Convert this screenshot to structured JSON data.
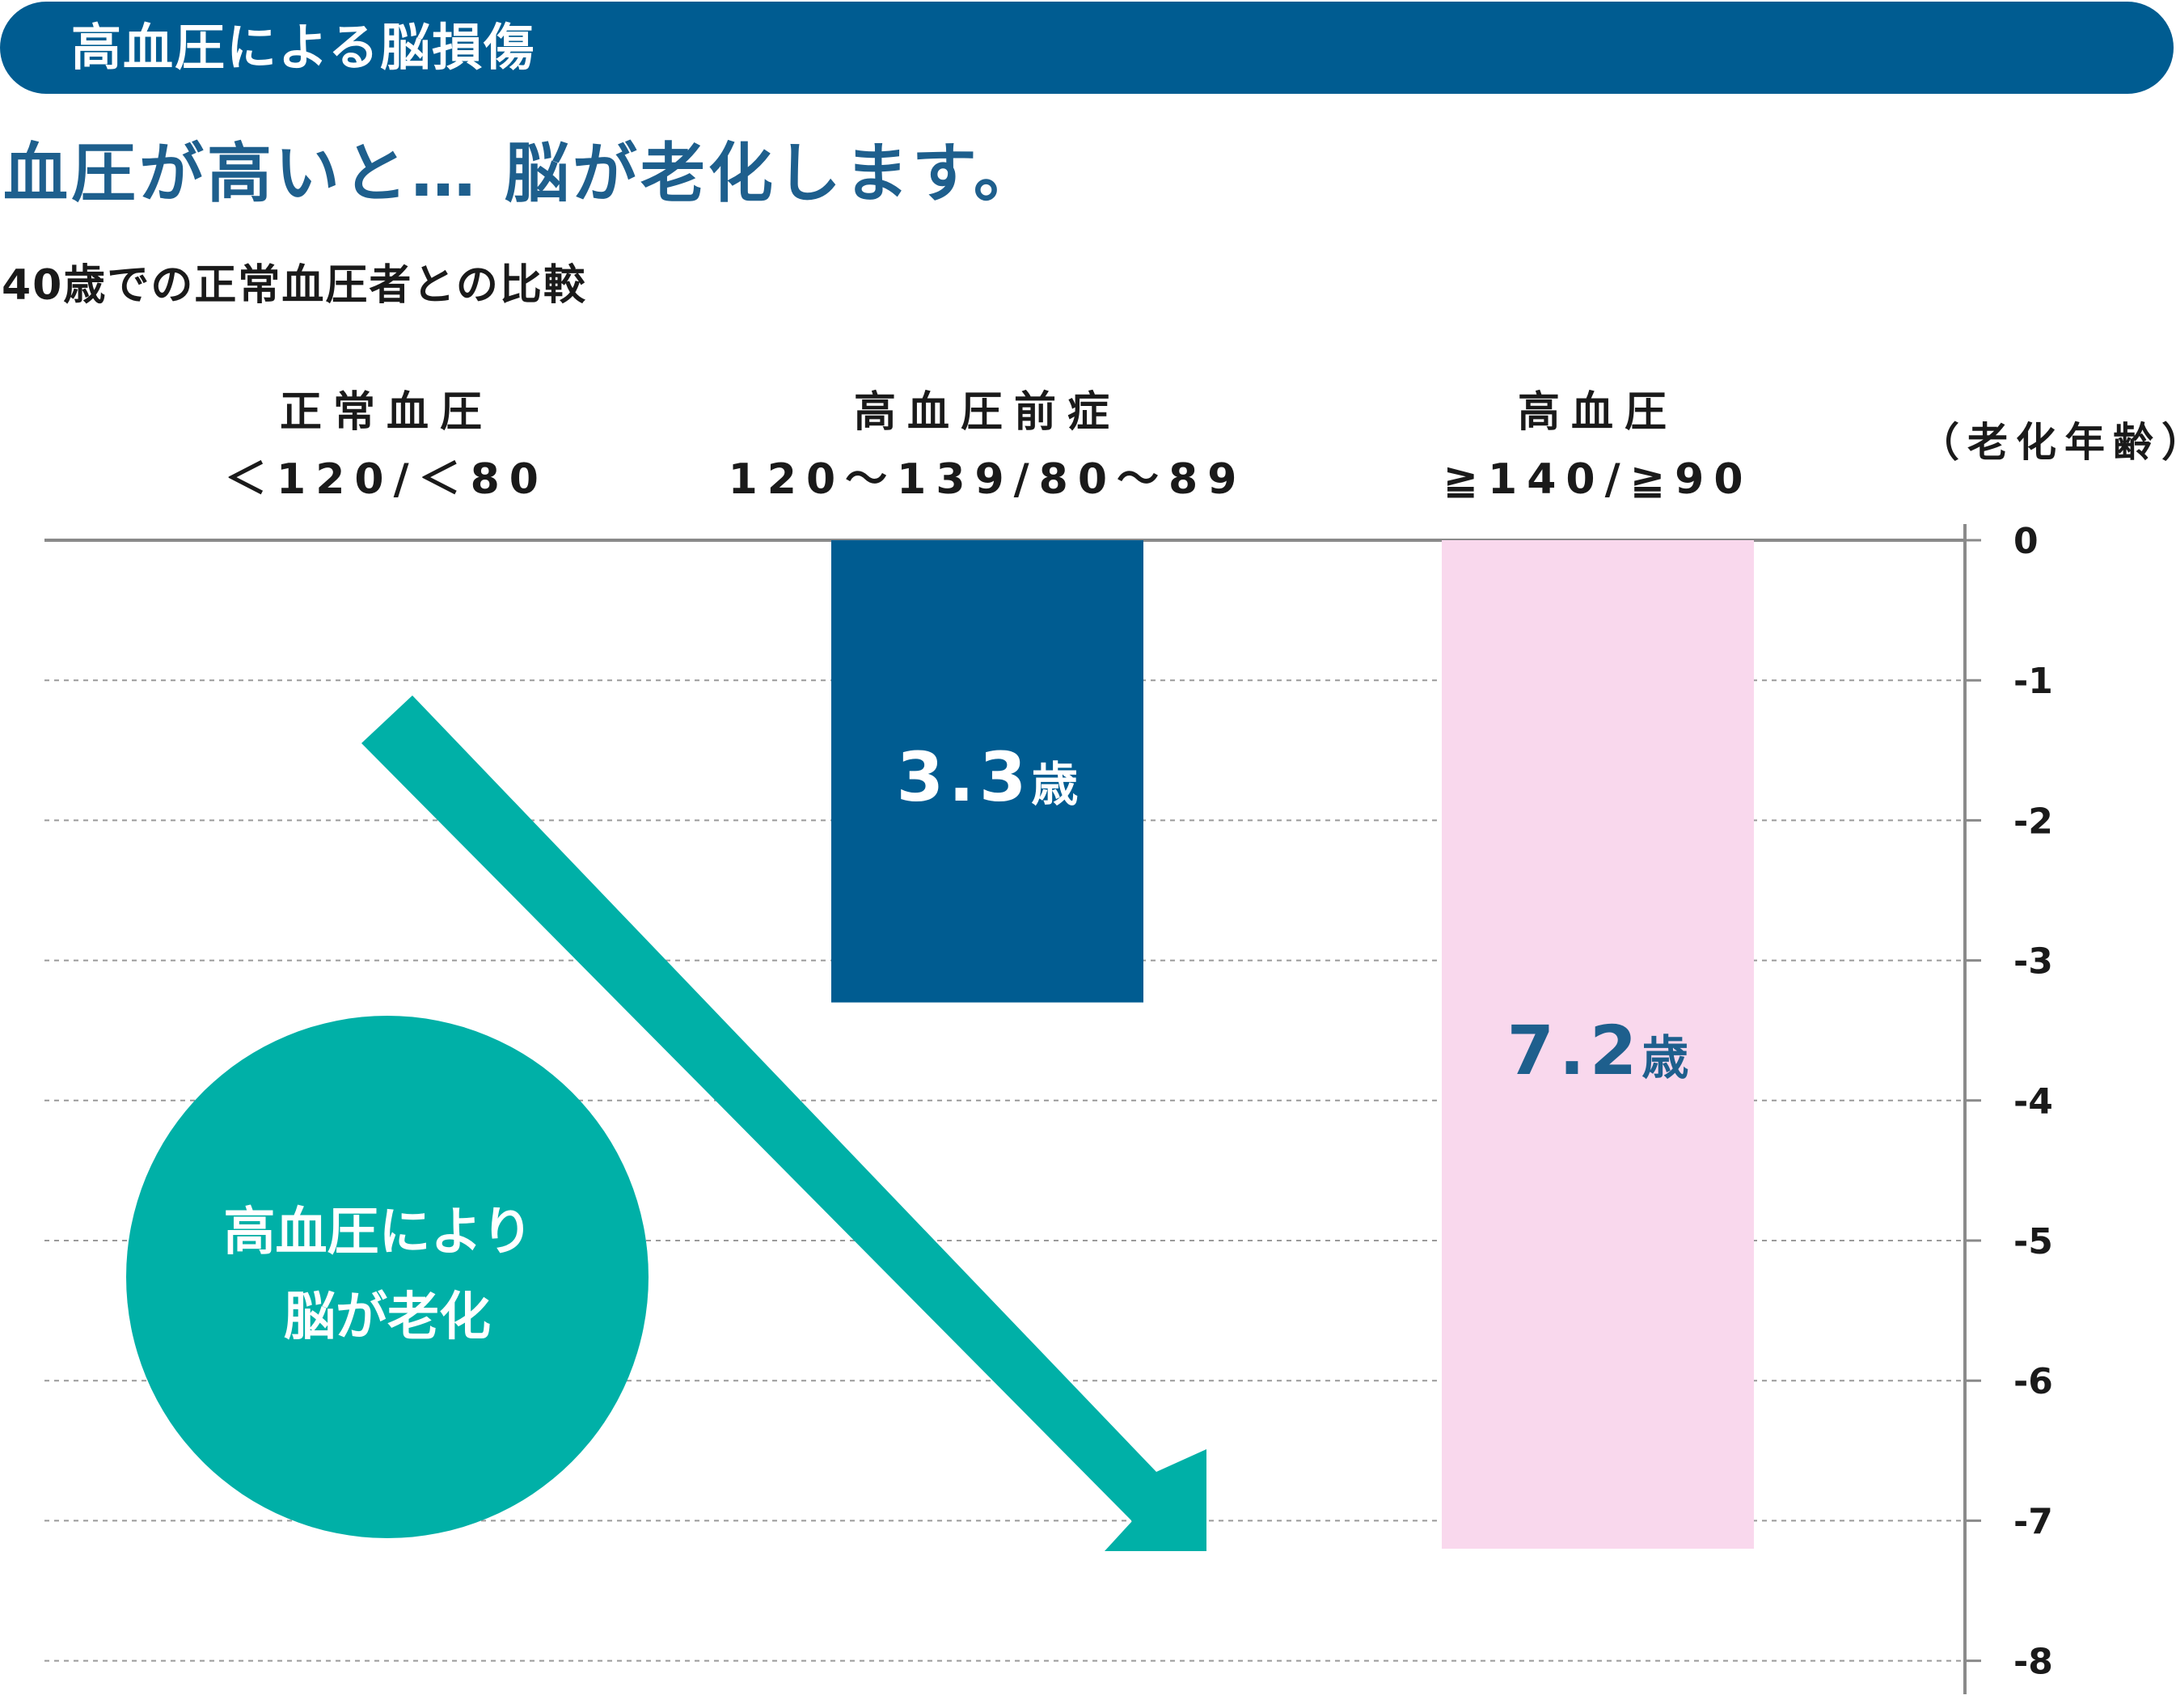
{
  "header": {
    "title": "高血圧による脳損傷"
  },
  "headline": "血圧が高いと… 脳が老化します。",
  "subtitle": "40歳での正常血圧者との比較",
  "colors": {
    "header_bg": "#005c91",
    "headline": "#1e5f8d",
    "bar_prehypertension": "#005c91",
    "bar_hypertension": "#f9d8ed",
    "arrow_and_circle": "#00b0a7"
  },
  "chart_data": {
    "type": "bar",
    "orientation": "downward-from-zero",
    "y_unit_label": "（老化年齢）",
    "ylim": [
      -8,
      0
    ],
    "y_ticks": [
      "0",
      "-1",
      "-2",
      "-3",
      "-4",
      "-5",
      "-6",
      "-7",
      "-8"
    ],
    "grid": "horizontal-dotted",
    "categories": [
      {
        "name": "正常血圧",
        "range": "＜120/＜80"
      },
      {
        "name": "高血圧前症",
        "range": "120～139/80～89"
      },
      {
        "name": "高血圧",
        "range": "≧140/≧90"
      }
    ],
    "values": [
      0,
      -3.3,
      -7.2
    ],
    "data_labels": [
      "",
      "3.3歳",
      "7.2歳"
    ],
    "annotation": {
      "arrow": "diagonal down-right",
      "circle_lines": [
        "高血圧により",
        "脳が老化"
      ]
    }
  }
}
